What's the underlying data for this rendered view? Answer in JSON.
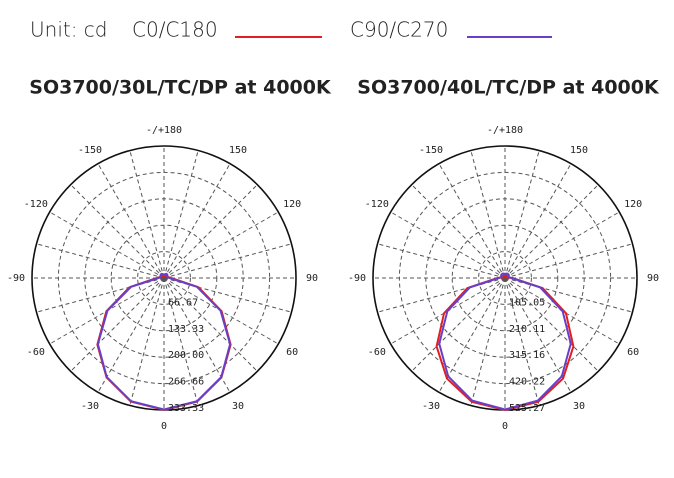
{
  "unit_label": "Unit: cd",
  "chart_data": [
    {
      "type": "polar",
      "title": "SO3700/30L/TC/DP at 4000K",
      "x": [
        -180,
        -165,
        -150,
        -135,
        -120,
        -105,
        -90,
        -75,
        -60,
        -45,
        -30,
        -15,
        0,
        15,
        30,
        45,
        60,
        75,
        90,
        105,
        120,
        135,
        150,
        165,
        180
      ],
      "series": [
        {
          "name": "C0/C180",
          "color": "#e02020",
          "values": [
            5,
            5,
            6,
            7,
            8,
            10,
            18,
            90,
            168,
            238,
            290,
            323,
            333,
            323,
            290,
            238,
            168,
            90,
            18,
            10,
            8,
            7,
            6,
            5,
            5
          ]
        },
        {
          "name": "C90/C270",
          "color": "#6a3fc8",
          "values": [
            9,
            10,
            12,
            12,
            10,
            8,
            14,
            86,
            165,
            236,
            289,
            322,
            332,
            322,
            289,
            236,
            165,
            86,
            14,
            8,
            10,
            12,
            12,
            10,
            9
          ]
        }
      ],
      "rlim": [
        0,
        333.33
      ],
      "rticks": [
        66.67,
        133.33,
        {
          "value": 200,
          "label": "200.00"
        },
        266.66,
        333.33
      ],
      "angle_ticks": [
        {
          "value": 180,
          "label": "-/+180"
        },
        -150,
        150,
        -120,
        120,
        -90,
        90,
        -60,
        60,
        -30,
        30,
        0
      ]
    },
    {
      "type": "polar",
      "title": "SO3700/40L/TC/DP at 4000K",
      "x": [
        -180,
        -165,
        -150,
        -135,
        -120,
        -105,
        -90,
        -75,
        -60,
        -45,
        -30,
        -15,
        0,
        15,
        30,
        45,
        60,
        75,
        90,
        105,
        120,
        135,
        150,
        165,
        180
      ],
      "series": [
        {
          "name": "C0/C180",
          "color": "#e02020",
          "values": [
            8,
            8,
            8,
            8,
            8,
            8,
            30,
            155,
            280,
            385,
            462,
            510,
            525,
            510,
            462,
            385,
            280,
            155,
            30,
            8,
            8,
            8,
            8,
            8,
            8
          ]
        },
        {
          "name": "C90/C270",
          "color": "#6a3fc8",
          "values": [
            16,
            18,
            20,
            20,
            18,
            15,
            25,
            145,
            265,
            370,
            452,
            505,
            523,
            505,
            452,
            370,
            265,
            145,
            25,
            15,
            18,
            20,
            20,
            18,
            16
          ]
        }
      ],
      "rlim": [
        0,
        525.27
      ],
      "rticks": [
        105.05,
        210.11,
        315.16,
        420.22,
        525.27
      ],
      "angle_ticks": [
        {
          "value": 180,
          "label": "-/+180"
        },
        -150,
        150,
        -120,
        120,
        -90,
        90,
        -60,
        60,
        -30,
        30,
        0
      ]
    }
  ]
}
